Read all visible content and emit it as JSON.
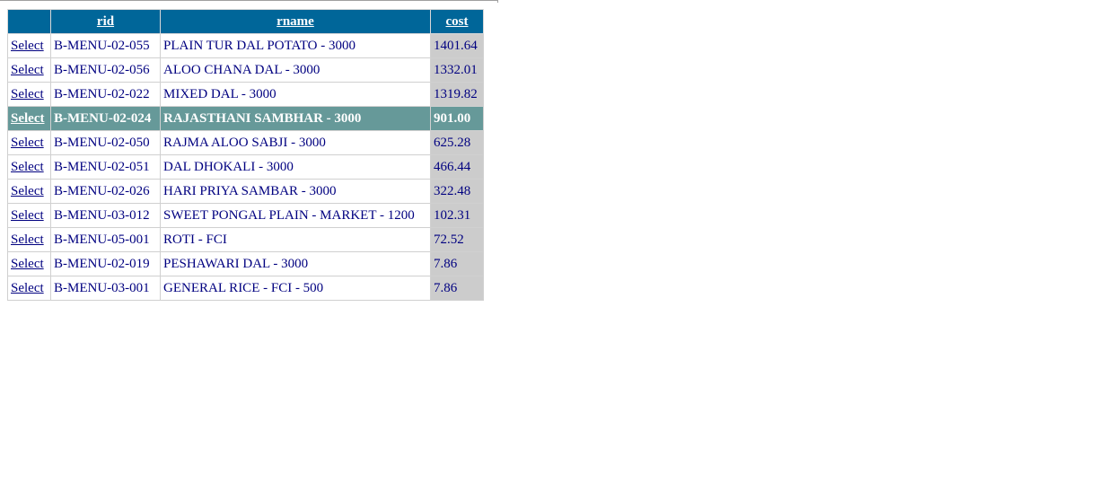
{
  "grid": {
    "columns": [
      "rid",
      "rname",
      "cost"
    ],
    "select_label": "Select",
    "selected_index": 3,
    "rows": [
      {
        "rid": "B-MENU-02-055",
        "rname": "PLAIN TUR DAL POTATO - 3000",
        "cost": "1401.64"
      },
      {
        "rid": "B-MENU-02-056",
        "rname": "ALOO CHANA DAL - 3000",
        "cost": "1332.01"
      },
      {
        "rid": "B-MENU-02-022",
        "rname": "MIXED DAL - 3000",
        "cost": "1319.82"
      },
      {
        "rid": "B-MENU-02-024",
        "rname": "RAJASTHANI SAMBHAR - 3000",
        "cost": "901.00"
      },
      {
        "rid": "B-MENU-02-050",
        "rname": "RAJMA ALOO SABJI - 3000",
        "cost": "625.28"
      },
      {
        "rid": "B-MENU-02-051",
        "rname": "DAL DHOKALI - 3000",
        "cost": "466.44"
      },
      {
        "rid": "B-MENU-02-026",
        "rname": "HARI PRIYA SAMBAR - 3000",
        "cost": "322.48"
      },
      {
        "rid": "B-MENU-03-012",
        "rname": "SWEET PONGAL PLAIN - MARKET - 1200",
        "cost": "102.31"
      },
      {
        "rid": "B-MENU-05-001",
        "rname": "ROTI - FCI",
        "cost": "72.52"
      },
      {
        "rid": "B-MENU-02-019",
        "rname": "PESHAWARI DAL - 3000",
        "cost": "7.86"
      },
      {
        "rid": "B-MENU-03-001",
        "rname": "GENERAL RICE - FCI - 500",
        "cost": "7.86"
      }
    ]
  },
  "colors": {
    "header_bg": "#006699",
    "selected_row_bg": "#669999",
    "cost_cell_bg": "#cccccc",
    "text": "#000080"
  }
}
